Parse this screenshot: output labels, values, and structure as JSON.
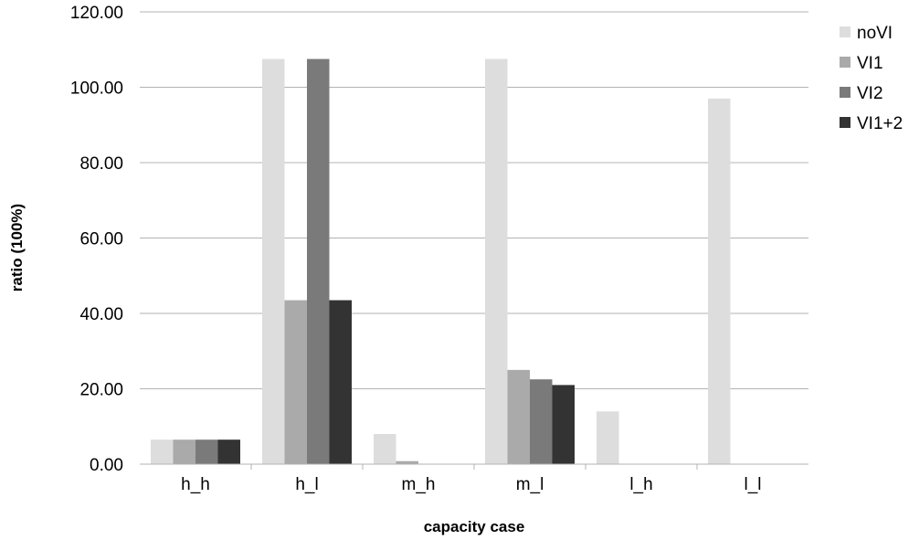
{
  "chart_data": {
    "type": "bar",
    "title": "",
    "xlabel": "capacity case",
    "ylabel": "ratio (100%)",
    "ylim": [
      0,
      120
    ],
    "yticks": [
      "0.00",
      "20.00",
      "40.00",
      "60.00",
      "80.00",
      "100.00",
      "120.00"
    ],
    "categories": [
      "h_h",
      "h_l",
      "m_h",
      "m_l",
      "l_h",
      "l_l"
    ],
    "series": [
      {
        "name": "noVI",
        "color": "#dddddd",
        "values": [
          6.5,
          107.5,
          8.0,
          107.5,
          14.0,
          97.0
        ]
      },
      {
        "name": "VI1",
        "color": "#aaaaaa",
        "values": [
          6.5,
          43.5,
          0.8,
          25.0,
          0.0,
          0.0
        ]
      },
      {
        "name": "VI2",
        "color": "#7a7a7a",
        "values": [
          6.5,
          107.5,
          0.0,
          22.5,
          0.0,
          0.0
        ]
      },
      {
        "name": "VI1+2",
        "color": "#333333",
        "values": [
          6.5,
          43.5,
          0.0,
          21.0,
          0.0,
          0.0
        ]
      }
    ],
    "grid": true,
    "legend_position": "right"
  }
}
